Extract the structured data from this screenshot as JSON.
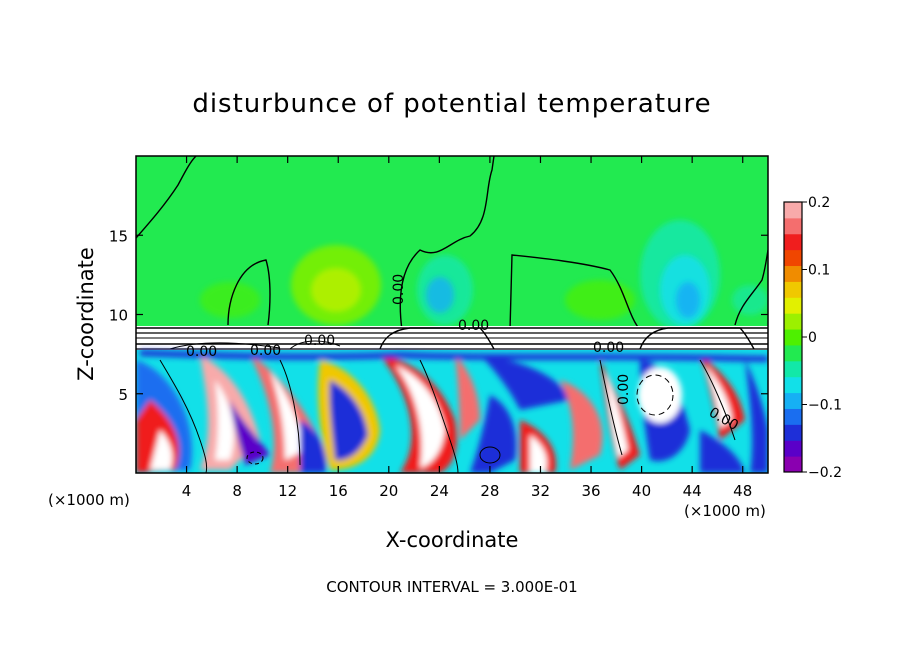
{
  "chart_data": {
    "type": "heatmap",
    "title": "disturbunce of potential temperature",
    "xlabel": "X-coordinate",
    "ylabel": "Z-coordinate",
    "x_unit": "(×1000 m)",
    "z_unit": "(×1000 m)",
    "xlim": [
      0,
      50
    ],
    "ylim": [
      0,
      20
    ],
    "x_ticks": [
      4,
      8,
      12,
      16,
      20,
      24,
      28,
      32,
      36,
      40,
      44,
      48
    ],
    "y_ticks": [
      5,
      10,
      15
    ],
    "colorbar": {
      "range": [
        -0.2,
        0.2
      ],
      "ticks": [
        0.2,
        0.1,
        0,
        -0.1,
        -0.2
      ],
      "tick_labels": [
        "0.2",
        "0.1",
        "0",
        "−0.1",
        "−0.2"
      ],
      "colors": [
        "#8a00b0",
        "#5a00c8",
        "#1e2fd8",
        "#1a6ef0",
        "#16b0f4",
        "#12e0e8",
        "#12e8a8",
        "#22ea50",
        "#4ef000",
        "#9cf000",
        "#e2f000",
        "#f0c800",
        "#f08c00",
        "#f04600",
        "#f01e1e",
        "#f46e6e",
        "#f8aaaa"
      ]
    },
    "contour_labels": [
      "0.00",
      "0.00",
      "0.00",
      "0.00",
      "0.00",
      "0.00",
      "0.00",
      "0.00"
    ],
    "footer": "CONTOUR INTERVAL = 3.000E-01"
  },
  "colors": {
    "background_green": "#22ea50"
  }
}
